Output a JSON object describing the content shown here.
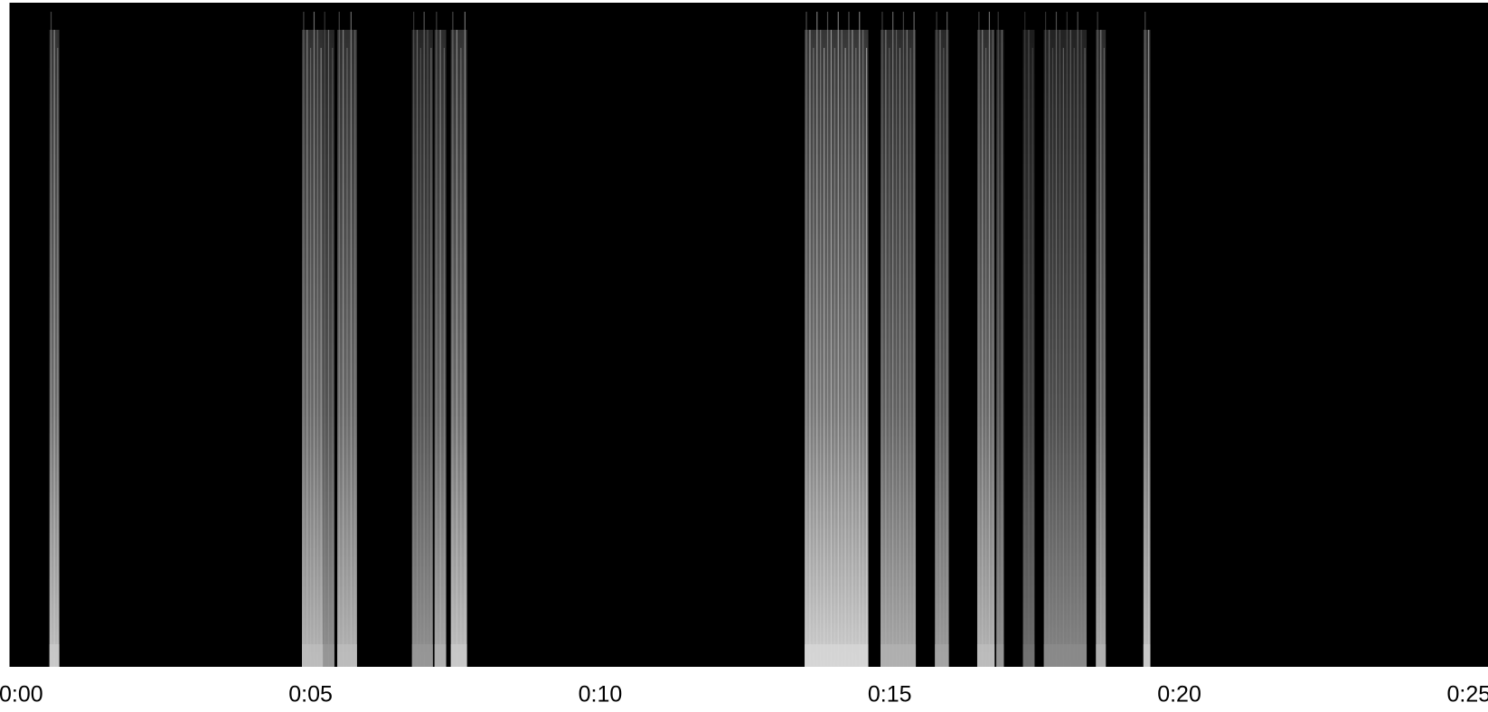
{
  "chart_data": {
    "type": "spectrogram",
    "background": "#000000",
    "color": "#ffffff",
    "xlim": [
      -0.2,
      25.33
    ],
    "xticks": [
      {
        "value": 0,
        "label": "0:00"
      },
      {
        "value": 5,
        "label": "0:05"
      },
      {
        "value": 10,
        "label": "0:10"
      },
      {
        "value": 15,
        "label": "0:15"
      },
      {
        "value": 20,
        "label": "0:20"
      },
      {
        "value": 25,
        "label": "0:25"
      }
    ],
    "bursts": [
      {
        "start": 0.49,
        "end": 0.66,
        "intensity": 0.8
      },
      {
        "start": 4.85,
        "end": 5.21,
        "intensity": 0.75
      },
      {
        "start": 5.21,
        "end": 5.41,
        "intensity": 0.6
      },
      {
        "start": 5.46,
        "end": 5.8,
        "intensity": 0.75
      },
      {
        "start": 6.75,
        "end": 7.11,
        "intensity": 0.6
      },
      {
        "start": 7.14,
        "end": 7.34,
        "intensity": 0.7
      },
      {
        "start": 7.42,
        "end": 7.7,
        "intensity": 0.8
      },
      {
        "start": 13.53,
        "end": 14.63,
        "intensity": 0.85
      },
      {
        "start": 14.84,
        "end": 15.45,
        "intensity": 0.7
      },
      {
        "start": 15.78,
        "end": 16.02,
        "intensity": 0.65
      },
      {
        "start": 16.51,
        "end": 16.81,
        "intensity": 0.75
      },
      {
        "start": 16.84,
        "end": 16.97,
        "intensity": 0.6
      },
      {
        "start": 17.3,
        "end": 17.5,
        "intensity": 0.45
      },
      {
        "start": 17.66,
        "end": 18.4,
        "intensity": 0.55
      },
      {
        "start": 18.56,
        "end": 18.73,
        "intensity": 0.7
      },
      {
        "start": 19.38,
        "end": 19.5,
        "intensity": 0.8
      }
    ]
  }
}
